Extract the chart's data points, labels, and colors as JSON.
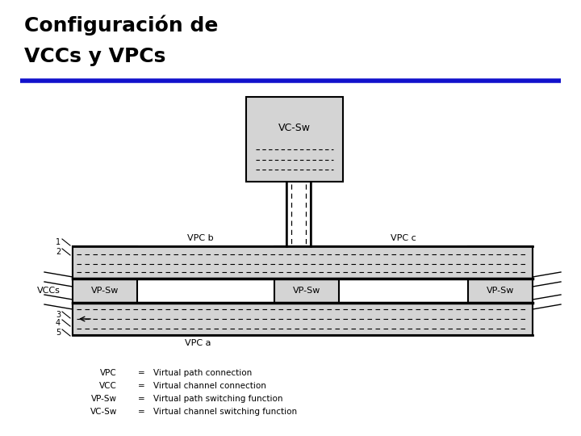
{
  "title_line1": "Configuración de",
  "title_line2": "VCCs y VPCs",
  "title_color": "#000000",
  "title_fontsize": 18,
  "title_fontweight": "bold",
  "blue_line_color": "#1111cc",
  "bg_color": "#ffffff",
  "box_fill": "#d4d4d4",
  "legend_items": [
    [
      "VPC",
      "Virtual path connection"
    ],
    [
      "VCC",
      "Virtual channel connection"
    ],
    [
      "VP-Sw",
      "Virtual path switching function"
    ],
    [
      "VC-Sw",
      "Virtual channel switching function"
    ]
  ]
}
